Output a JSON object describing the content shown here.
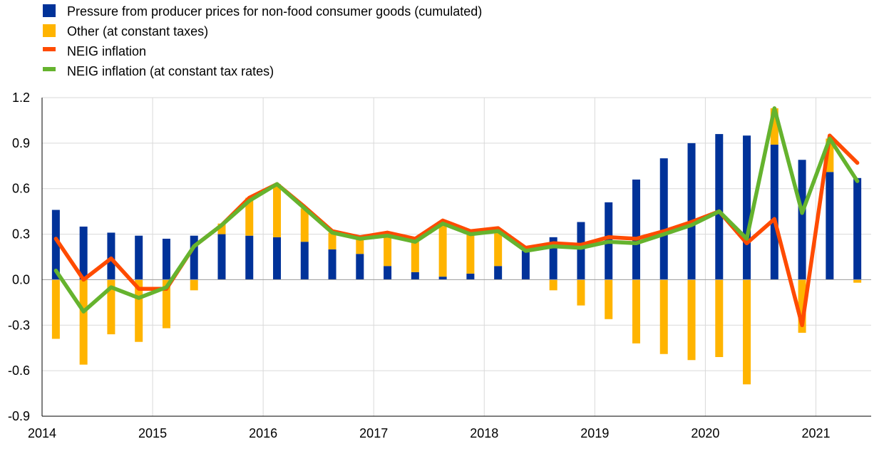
{
  "chart_data": {
    "type": "bar",
    "title": "",
    "xlabel": "",
    "ylabel": "",
    "ylim": [
      -0.9,
      1.2
    ],
    "yticks": [
      "1.2",
      "0.9",
      "0.6",
      "0.3",
      "0.0",
      "-0.3",
      "-0.6",
      "-0.9"
    ],
    "ytick_values": [
      1.2,
      0.9,
      0.6,
      0.3,
      0.0,
      -0.3,
      -0.6,
      -0.9
    ],
    "xticks": [
      "2014",
      "2015",
      "2016",
      "2017",
      "2018",
      "2019",
      "2020",
      "2021"
    ],
    "categories": [
      "2014Q1",
      "2014Q2",
      "2014Q3",
      "2014Q4",
      "2015Q1",
      "2015Q2",
      "2015Q3",
      "2015Q4",
      "2016Q1",
      "2016Q2",
      "2016Q3",
      "2016Q4",
      "2017Q1",
      "2017Q2",
      "2017Q3",
      "2017Q4",
      "2018Q1",
      "2018Q2",
      "2018Q3",
      "2018Q4",
      "2019Q1",
      "2019Q2",
      "2019Q3",
      "2019Q4",
      "2020Q1",
      "2020Q2",
      "2020Q3",
      "2020Q4",
      "2021Q1",
      "2021Q2"
    ],
    "grid": true,
    "legend_position": "top-left",
    "series": [
      {
        "name": "Pressure from producer prices for non-food consumer goods (cumulated)",
        "kind": "bar",
        "color": "#003299",
        "values": [
          0.46,
          0.35,
          0.31,
          0.29,
          0.27,
          0.29,
          0.3,
          0.29,
          0.28,
          0.25,
          0.2,
          0.17,
          0.09,
          0.05,
          0.02,
          0.04,
          0.09,
          0.19,
          0.28,
          0.38,
          0.51,
          0.66,
          0.8,
          0.9,
          0.96,
          0.95,
          0.89,
          0.79,
          0.71,
          0.67
        ]
      },
      {
        "name": "Other (at constant taxes)",
        "kind": "bar",
        "color": "#FFB400",
        "values": [
          -0.39,
          -0.56,
          -0.36,
          -0.41,
          -0.32,
          -0.07,
          0.07,
          0.25,
          0.35,
          0.22,
          0.11,
          0.1,
          0.22,
          0.2,
          0.35,
          0.26,
          0.22,
          0.01,
          -0.07,
          -0.17,
          -0.26,
          -0.42,
          -0.49,
          -0.53,
          -0.51,
          -0.69,
          0.24,
          -0.35,
          0.22,
          -0.02
        ]
      },
      {
        "name": "NEIG inflation",
        "kind": "line",
        "color": "#FF4B00",
        "values": [
          0.27,
          0.0,
          0.14,
          -0.06,
          -0.06,
          0.22,
          0.36,
          0.54,
          0.63,
          0.48,
          0.32,
          0.28,
          0.31,
          0.27,
          0.39,
          0.32,
          0.34,
          0.21,
          0.24,
          0.23,
          0.28,
          0.27,
          0.32,
          0.38,
          0.45,
          0.24,
          0.4,
          -0.3,
          0.95,
          0.77
        ]
      },
      {
        "name": "NEIG inflation (at constant tax rates)",
        "kind": "line",
        "color": "#65B32E",
        "values": [
          0.06,
          -0.21,
          -0.05,
          -0.12,
          -0.05,
          0.22,
          0.36,
          0.52,
          0.63,
          0.47,
          0.31,
          0.27,
          0.29,
          0.25,
          0.37,
          0.3,
          0.32,
          0.19,
          0.22,
          0.21,
          0.25,
          0.24,
          0.3,
          0.36,
          0.45,
          0.27,
          1.13,
          0.44,
          0.93,
          0.65
        ]
      }
    ]
  }
}
